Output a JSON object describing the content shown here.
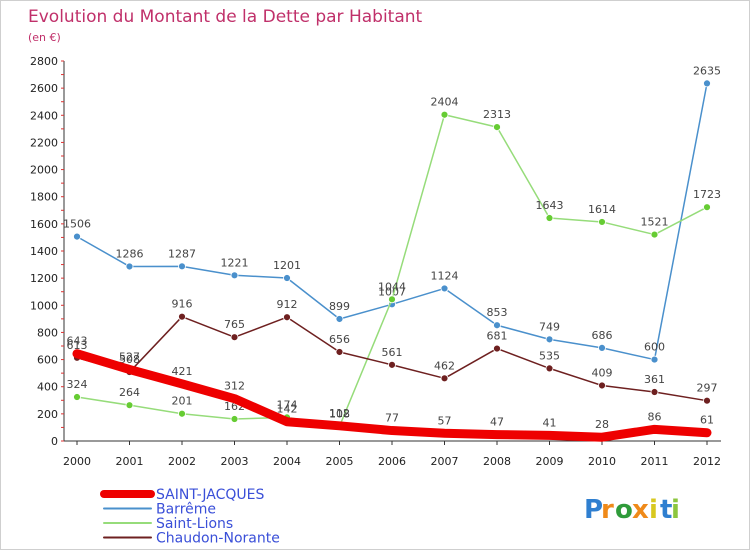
{
  "chart_data": {
    "type": "line",
    "title": "Evolution du Montant de la Dette par Habitant",
    "subtitle": "(en €)",
    "xlabel": "",
    "ylabel": "",
    "x": [
      "2000",
      "2001",
      "2002",
      "2003",
      "2004",
      "2005",
      "2006",
      "2007",
      "2008",
      "2009",
      "2010",
      "2011",
      "2012"
    ],
    "y_ticks": [
      0,
      200,
      400,
      600,
      800,
      1000,
      1200,
      1400,
      1600,
      1800,
      2000,
      2200,
      2400,
      2600,
      2800
    ],
    "ylim": [
      0,
      2800
    ],
    "grid": false,
    "legend_position": "bottom-left",
    "series": [
      {
        "name": "Barrême",
        "color": "#4a90cc",
        "marker": "#4a90cc",
        "values": [
          1506,
          1286,
          1287,
          1221,
          1201,
          899,
          1007,
          1124,
          853,
          749,
          686,
          600,
          2635
        ]
      },
      {
        "name": "Saint-Lions",
        "color": "#96dc7a",
        "marker": "#66cc33",
        "values": [
          324,
          264,
          201,
          162,
          174,
          108,
          1044,
          2404,
          2313,
          1643,
          1614,
          1521,
          1723
        ]
      },
      {
        "name": "Chaudon-Norante",
        "color": "#6e2020",
        "marker": "#6e2020",
        "values": [
          613,
          508,
          916,
          765,
          912,
          656,
          561,
          462,
          681,
          535,
          409,
          361,
          297
        ]
      },
      {
        "name": "SAINT-JACQUES",
        "color": "#ee0000",
        "marker": "#ee0000",
        "values": [
          643,
          527,
          421,
          312,
          142,
          112,
          77,
          57,
          47,
          41,
          28,
          86,
          61
        ]
      }
    ]
  },
  "logo": {
    "letters": [
      "P",
      "r",
      "o",
      "x",
      "i",
      "t",
      "i"
    ],
    "colors": [
      "#2f7fd0",
      "#ef8a1a",
      "#2f9b3a",
      "#ef8a1a",
      "#d8c820",
      "#2f7fd0",
      "#8cc63f"
    ]
  }
}
